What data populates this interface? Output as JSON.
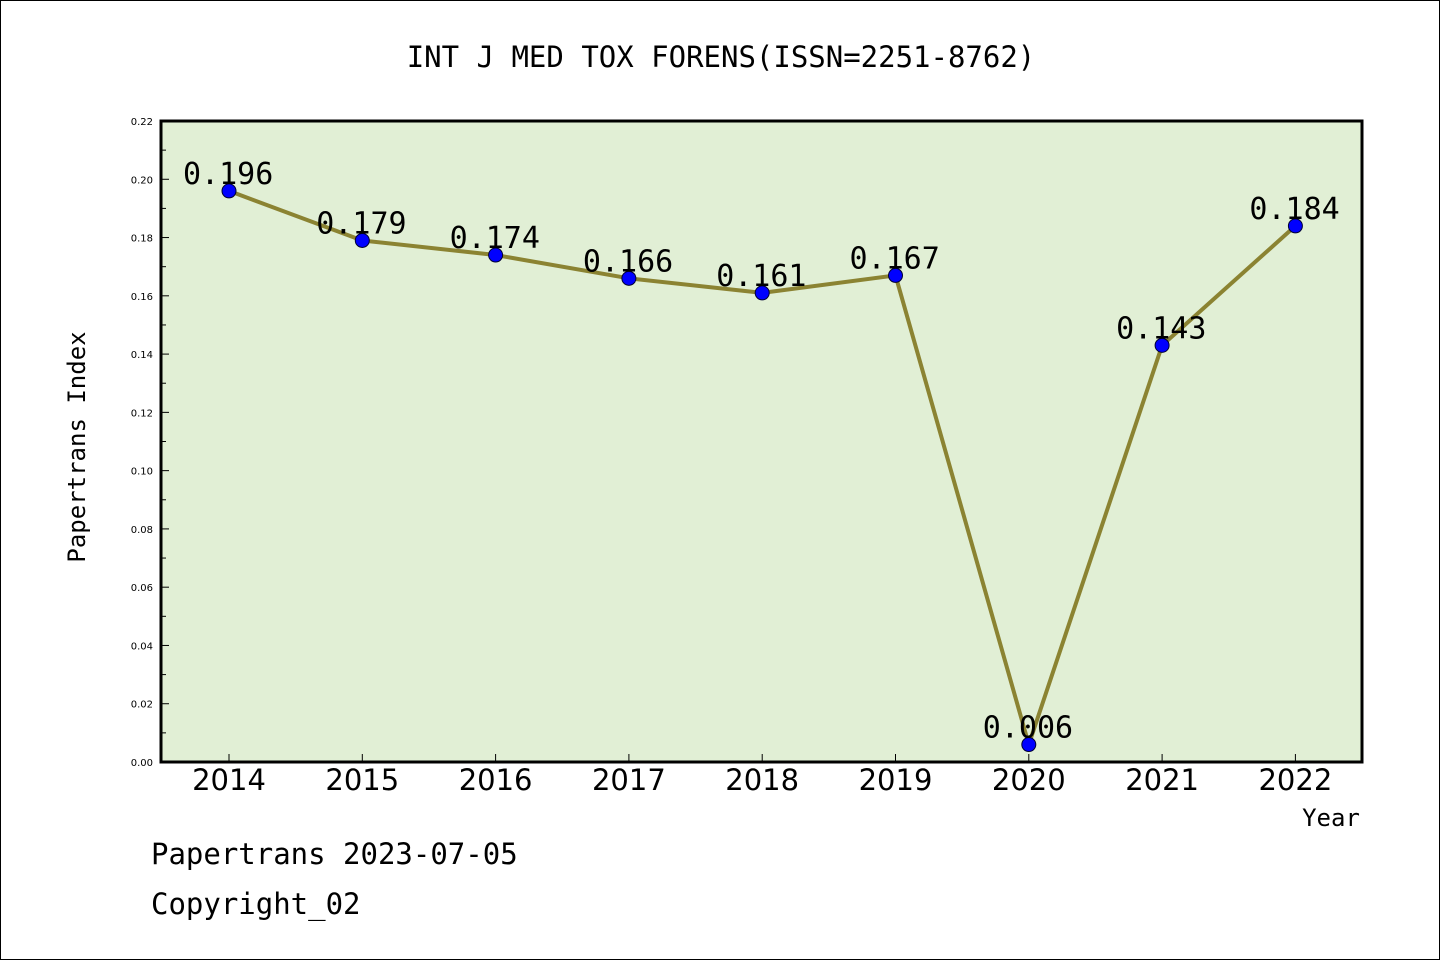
{
  "chart_data": {
    "type": "line",
    "title": "INT J MED TOX FORENS(ISSN=2251-8762)",
    "xlabel": "Year",
    "ylabel": "Papertrans Index",
    "categories": [
      "2014",
      "2015",
      "2016",
      "2017",
      "2018",
      "2019",
      "2020",
      "2021",
      "2022"
    ],
    "series": [
      {
        "values": [
          0.196,
          0.179,
          0.174,
          0.166,
          0.161,
          0.167,
          0.006,
          0.143,
          0.184
        ],
        "labels": [
          "0.196",
          "0.179",
          "0.174",
          "0.166",
          "0.161",
          "0.167",
          "0.006",
          "0.143",
          "0.184"
        ]
      }
    ],
    "ylim": [
      0,
      0.22
    ],
    "yticks": [
      "0.00",
      "0.02",
      "0.04",
      "0.06",
      "0.08",
      "0.10",
      "0.12",
      "0.14",
      "0.16",
      "0.18",
      "0.20",
      "0.22"
    ],
    "grid": false,
    "legend": "none",
    "colors": {
      "line": "#8b8332",
      "marker": "#0000ff",
      "plot_background": "#e1efd5",
      "axis": "#000000"
    }
  },
  "footer": {
    "date_line": "Papertrans 2023-07-05",
    "copyright_line": "Copyright_02"
  }
}
